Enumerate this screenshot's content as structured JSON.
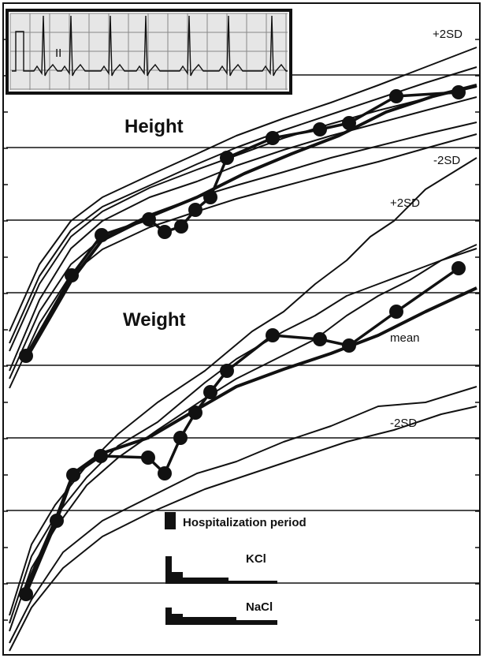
{
  "chart_data": {
    "type": "line",
    "grid": true,
    "panels": [
      {
        "name": "Height",
        "labels": {
          "upper": "+2SD",
          "lower": "-2SD"
        },
        "series": [
          {
            "values": [
              [
                33,
                451
              ],
              [
                91,
                349
              ],
              [
                129,
                298
              ],
              [
                189,
                278
              ],
              [
                209,
                294
              ],
              [
                230,
                287
              ],
              [
                248,
                266
              ],
              [
                267,
                250
              ],
              [
                288,
                200
              ],
              [
                346,
                175
              ],
              [
                406,
                164
              ],
              [
                443,
                156
              ],
              [
                503,
                122
              ],
              [
                582,
                117
              ]
            ]
          }
        ],
        "reference_lines": [
          [
            [
              12,
              470
            ],
            [
              50,
              380
            ],
            [
              90,
              315
            ],
            [
              130,
              280
            ],
            [
              190,
              250
            ],
            [
              250,
              230
            ],
            [
              300,
              210
            ],
            [
              360,
              190
            ],
            [
              420,
              172
            ],
            [
              480,
              156
            ],
            [
              540,
              140
            ],
            [
              605,
              123
            ]
          ],
          [
            [
              12,
              445
            ],
            [
              50,
              360
            ],
            [
              90,
              300
            ],
            [
              130,
              268
            ],
            [
              190,
              238
            ],
            [
              250,
              215
            ],
            [
              300,
              197
            ],
            [
              360,
              175
            ],
            [
              420,
              157
            ],
            [
              480,
              140
            ],
            [
              540,
              125
            ],
            [
              605,
              110
            ]
          ],
          [
            [
              12,
              420
            ],
            [
              50,
              335
            ],
            [
              90,
              280
            ],
            [
              130,
              250
            ],
            [
              190,
              222
            ],
            [
              250,
              195
            ],
            [
              300,
              172
            ],
            [
              360,
              150
            ],
            [
              420,
              130
            ],
            [
              480,
              108
            ],
            [
              540,
              85
            ],
            [
              605,
              60
            ]
          ],
          [
            [
              12,
              435
            ],
            [
              50,
              350
            ],
            [
              90,
              292
            ],
            [
              130,
              262
            ],
            [
              190,
              235
            ],
            [
              250,
              208
            ],
            [
              300,
              187
            ],
            [
              360,
              165
            ],
            [
              420,
              145
            ],
            [
              480,
              125
            ],
            [
              540,
              105
            ],
            [
              605,
              85
            ]
          ],
          [
            [
              12,
              480
            ],
            [
              50,
              395
            ],
            [
              90,
              335
            ],
            [
              130,
              302
            ],
            [
              190,
              272
            ],
            [
              250,
              250
            ],
            [
              300,
              235
            ],
            [
              360,
              218
            ],
            [
              420,
              200
            ],
            [
              480,
              185
            ],
            [
              540,
              170
            ],
            [
              605,
              155
            ]
          ],
          [
            [
              12,
              492
            ],
            [
              50,
              410
            ],
            [
              90,
              348
            ],
            [
              130,
              316
            ],
            [
              190,
              288
            ],
            [
              250,
              268
            ],
            [
              300,
              252
            ],
            [
              360,
              236
            ],
            [
              420,
              220
            ],
            [
              480,
              205
            ],
            [
              540,
              188
            ],
            [
              605,
              170
            ]
          ]
        ],
        "mean_line": [
          [
            33,
            455
          ],
          [
            91,
            355
          ],
          [
            129,
            305
          ],
          [
            189,
            275
          ],
          [
            250,
            250
          ],
          [
            310,
            220
          ],
          [
            370,
            195
          ],
          [
            430,
            172
          ],
          [
            490,
            142
          ],
          [
            550,
            122
          ],
          [
            605,
            108
          ]
        ]
      },
      {
        "name": "Weight",
        "labels": {
          "upper": "+2SD",
          "mean": "mean",
          "lower": "-2SD"
        },
        "series": [
          {
            "values": [
              [
                33,
                753
              ],
              [
                72,
                660
              ],
              [
                93,
                602
              ],
              [
                128,
                578
              ],
              [
                188,
                580
              ],
              [
                209,
                600
              ],
              [
                229,
                555
              ],
              [
                248,
                523
              ],
              [
                267,
                497
              ],
              [
                288,
                470
              ],
              [
                346,
                425
              ],
              [
                406,
                430
              ],
              [
                443,
                438
              ],
              [
                503,
                395
              ],
              [
                582,
                340
              ]
            ]
          }
        ],
        "reference_lines": [
          [
            [
              12,
              780
            ],
            [
              40,
              690
            ],
            [
              70,
              640
            ],
            [
              110,
              590
            ],
            [
              150,
              550
            ],
            [
              200,
              510
            ],
            [
              260,
              470
            ],
            [
              320,
              420
            ],
            [
              360,
              395
            ],
            [
              400,
              360
            ],
            [
              440,
              330
            ],
            [
              470,
              300
            ],
            [
              500,
              280
            ],
            [
              540,
              240
            ],
            [
              605,
              200
            ]
          ],
          [
            [
              12,
              800
            ],
            [
              40,
              720
            ],
            [
              70,
              670
            ],
            [
              110,
              615
            ],
            [
              150,
              580
            ],
            [
              200,
              545
            ],
            [
              260,
              505
            ],
            [
              300,
              480
            ],
            [
              360,
              450
            ],
            [
              400,
              430
            ],
            [
              440,
              400
            ],
            [
              480,
              375
            ],
            [
              520,
              355
            ],
            [
              560,
              330
            ],
            [
              605,
              310
            ]
          ],
          [
            [
              12,
              815
            ],
            [
              40,
              760
            ],
            [
              80,
              700
            ],
            [
              130,
              660
            ],
            [
              190,
              630
            ],
            [
              250,
              600
            ],
            [
              300,
              585
            ],
            [
              360,
              560
            ],
            [
              420,
              540
            ],
            [
              480,
              515
            ],
            [
              540,
              510
            ],
            [
              605,
              490
            ]
          ],
          [
            [
              12,
              825
            ],
            [
              40,
              770
            ],
            [
              80,
              720
            ],
            [
              130,
              680
            ],
            [
              190,
              650
            ],
            [
              260,
              620
            ],
            [
              320,
              600
            ],
            [
              380,
              580
            ],
            [
              440,
              560
            ],
            [
              500,
              545
            ],
            [
              560,
              525
            ],
            [
              605,
              515
            ]
          ],
          [
            [
              12,
              790
            ],
            [
              40,
              705
            ],
            [
              70,
              655
            ],
            [
              110,
              605
            ],
            [
              150,
              565
            ],
            [
              200,
              535
            ],
            [
              260,
              485
            ],
            [
              300,
              455
            ],
            [
              360,
              420
            ],
            [
              400,
              400
            ],
            [
              440,
              375
            ],
            [
              480,
              360
            ],
            [
              520,
              345
            ],
            [
              560,
              330
            ],
            [
              605,
              315
            ]
          ]
        ],
        "mean_line": [
          [
            33,
            745
          ],
          [
            72,
            655
          ],
          [
            93,
            600
          ],
          [
            128,
            575
          ],
          [
            188,
            555
          ],
          [
            248,
            520
          ],
          [
            300,
            490
          ],
          [
            360,
            468
          ],
          [
            420,
            448
          ],
          [
            480,
            425
          ],
          [
            540,
            395
          ],
          [
            605,
            365
          ]
        ]
      }
    ],
    "legend": {
      "hospitalization": "Hospitalization period",
      "kcl": "KCl",
      "nacl": "NaCl"
    }
  },
  "colors": {
    "line": "#111111",
    "point": "#111111",
    "grid": "#111111",
    "background": "#ffffff"
  }
}
